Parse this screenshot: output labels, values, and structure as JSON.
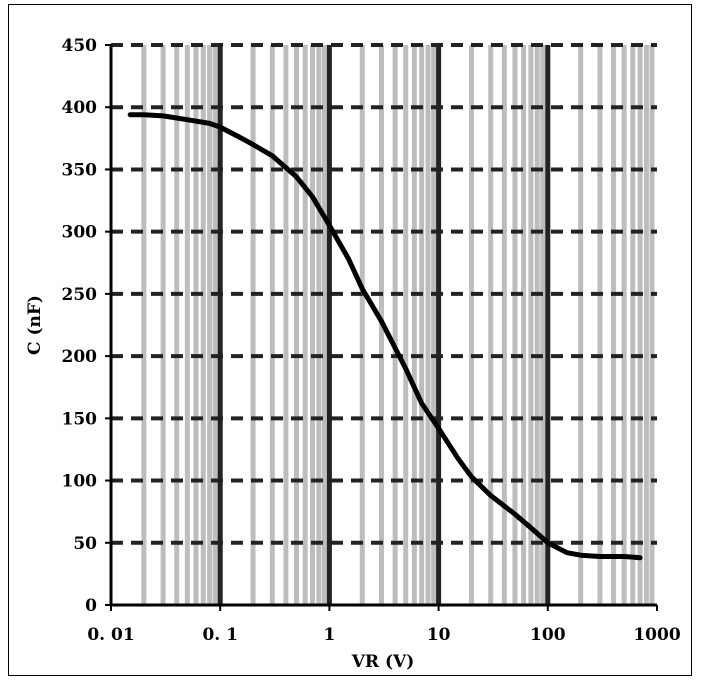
{
  "chart_data": {
    "type": "line",
    "title": "",
    "xlabel": "VR (V)",
    "ylabel": "C (nF)",
    "x_scale": "log",
    "xlim": [
      0.01,
      1000
    ],
    "ylim": [
      0,
      450
    ],
    "x_ticks": [
      "0. 01",
      "0. 1",
      "1",
      "10",
      "100",
      "1000"
    ],
    "y_ticks": [
      "0",
      "50",
      "100",
      "150",
      "200",
      "250",
      "300",
      "350",
      "400",
      "450"
    ],
    "grid": true,
    "series": [
      {
        "x": [
          0.015,
          0.02,
          0.03,
          0.05,
          0.08,
          0.1,
          0.15,
          0.2,
          0.3,
          0.5,
          0.7,
          1,
          1.5,
          2,
          3,
          5,
          7,
          10,
          15,
          20,
          30,
          50,
          70,
          100,
          150,
          200,
          300,
          500,
          700
        ],
        "y": [
          394,
          394,
          393,
          390,
          387,
          384,
          376,
          370,
          361,
          344,
          328,
          305,
          278,
          254,
          228,
          190,
          162,
          142,
          118,
          103,
          88,
          73,
          62,
          50,
          42,
          40,
          39,
          39,
          38
        ]
      }
    ]
  },
  "colors": {
    "grid_minor": "#bdbdbd",
    "grid_major": "#222222",
    "line": "#000000"
  }
}
